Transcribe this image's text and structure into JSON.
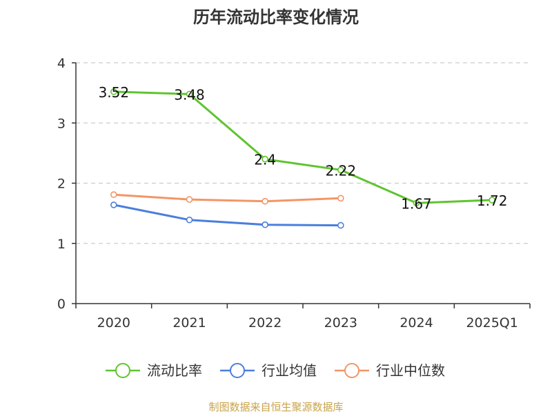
{
  "chart_data": {
    "type": "line",
    "title": "历年流动比率变化情况",
    "categories": [
      "2020",
      "2021",
      "2022",
      "2023",
      "2024",
      "2025Q1"
    ],
    "ylim": [
      0,
      4
    ],
    "yticks": [
      0,
      1,
      2,
      3,
      4
    ],
    "grid": true,
    "legend_position": "bottom",
    "series": [
      {
        "name": "流动比率",
        "color": "#5ec42e",
        "values": [
          3.52,
          3.48,
          2.4,
          2.22,
          1.67,
          1.72
        ],
        "labels": [
          "3.52",
          "3.48",
          "2.4",
          "2.22",
          "1.67",
          "1.72"
        ],
        "show_labels": true
      },
      {
        "name": "行业均值",
        "color": "#4a7fdc",
        "values": [
          1.64,
          1.39,
          1.31,
          1.3,
          null,
          null
        ],
        "show_labels": false
      },
      {
        "name": "行业中位数",
        "color": "#f39566",
        "values": [
          1.81,
          1.73,
          1.7,
          1.75,
          null,
          null
        ],
        "show_labels": false
      }
    ],
    "source": "制图数据来自恒生聚源数据库"
  }
}
